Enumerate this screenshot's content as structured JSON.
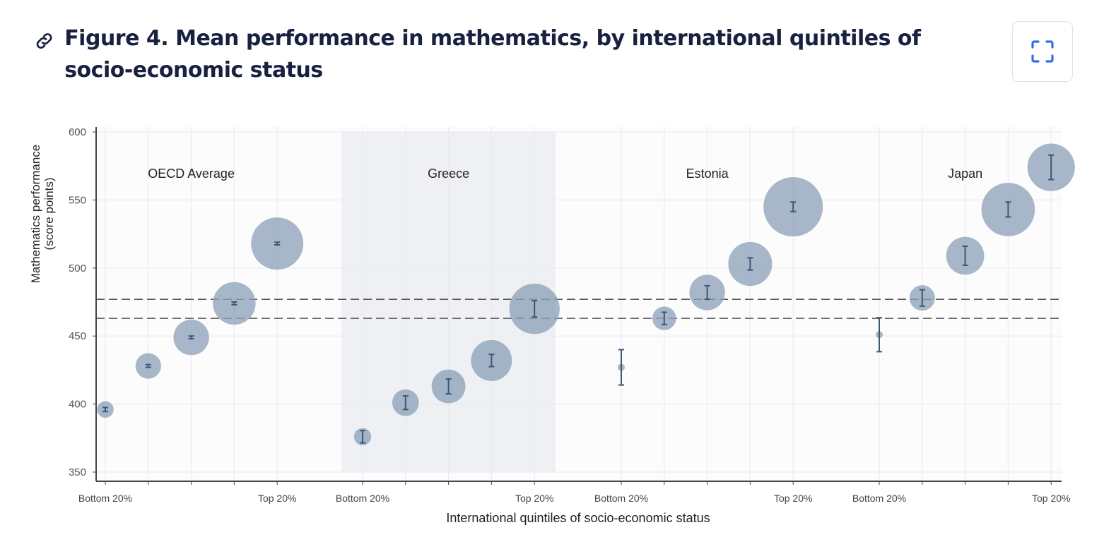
{
  "header": {
    "title": "Figure 4. Mean performance in mathematics, by international quintiles of socio-economic status",
    "link_icon": "link-icon",
    "expand_icon": "fullscreen-icon"
  },
  "chart_data": {
    "type": "scatter",
    "subtype": "bubble with error bars",
    "xlabel": "International quintiles of socio-economic status",
    "ylabel_lines": [
      "Mathematics performance",
      "(score points)"
    ],
    "ylim": [
      350,
      600
    ],
    "yticks": [
      350,
      400,
      450,
      500,
      550,
      600
    ],
    "grid": true,
    "reference_lines": [
      477,
      463
    ],
    "highlighted_group": "Greece",
    "colors": {
      "bubble": "#8ea1b8",
      "error_bar": "#3f5677",
      "highlight_band": "#eef0f4",
      "ref_line": "#555555"
    },
    "x_tick_labels": [
      "Bottom 20%",
      "",
      "",
      "",
      "Top 20%"
    ],
    "groups": [
      {
        "name": "OECD Average",
        "values": [
          396,
          428,
          449,
          474,
          518
        ],
        "errors": [
          1.5,
          1,
          1,
          1,
          1
        ],
        "bubble_size": [
          0.28,
          0.43,
          0.6,
          0.72,
          0.88
        ]
      },
      {
        "name": "Greece",
        "values": [
          376,
          401,
          413,
          432,
          470
        ],
        "errors": [
          4.5,
          5,
          5.5,
          4.5,
          6
        ],
        "bubble_size": [
          0.29,
          0.45,
          0.57,
          0.69,
          0.85
        ]
      },
      {
        "name": "Estonia",
        "values": [
          427,
          463,
          482,
          503,
          545
        ],
        "errors": [
          13,
          4.5,
          5,
          4.5,
          3.5
        ],
        "bubble_size": [
          0.12,
          0.4,
          0.6,
          0.74,
          1.0
        ]
      },
      {
        "name": "Japan",
        "values": [
          451,
          478,
          509,
          543,
          574
        ],
        "errors": [
          12.5,
          6,
          7,
          5.5,
          9
        ],
        "bubble_size": [
          0.12,
          0.43,
          0.64,
          0.9,
          0.8
        ]
      }
    ]
  }
}
